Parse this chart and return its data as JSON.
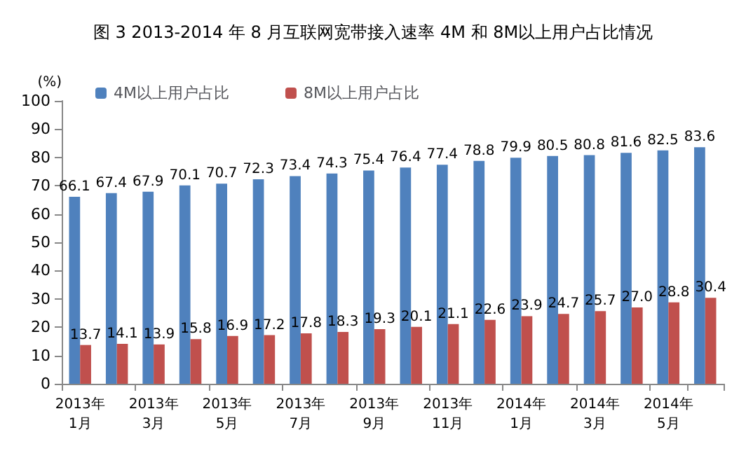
{
  "chart_data": {
    "type": "bar",
    "title": "图 3 2013-2014 年 8 月互联网宽带接入速率 4M 和 8M以上用户占比情况",
    "ylabel": "(%)",
    "categories": [
      "2013年\n1月",
      null,
      "2013年\n3月",
      null,
      "2013年\n5月",
      null,
      "2013年\n7月",
      null,
      "2013年\n9月",
      null,
      "2013年\n11月",
      null,
      "2014年\n1月",
      null,
      "2014年\n3月",
      null,
      "2014年\n5月",
      null
    ],
    "series": [
      {
        "name": "4M以上用户占比",
        "color": "#4f81bd",
        "values": [
          66.1,
          67.4,
          67.9,
          70.1,
          70.7,
          72.3,
          73.4,
          74.3,
          75.4,
          76.4,
          77.4,
          78.8,
          79.9,
          80.5,
          80.8,
          81.6,
          82.5,
          83.6
        ]
      },
      {
        "name": "8M以上用户占比",
        "color": "#c0504d",
        "values": [
          13.7,
          14.1,
          13.9,
          15.8,
          16.9,
          17.2,
          17.8,
          18.3,
          19.3,
          20.1,
          21.1,
          22.6,
          23.9,
          24.7,
          25.7,
          27.0,
          28.8,
          30.4
        ],
        "value_labels": [
          "13.7",
          "14.1",
          "13.9",
          "15.8",
          "16.9",
          "17.2",
          "17.8",
          "18.3",
          "19.3",
          "20.1",
          "21.1",
          "22.6",
          "23.9",
          "24.7",
          "25.7",
          "27.0",
          "28.8",
          "30.4"
        ]
      }
    ],
    "ylim": [
      0,
      100
    ],
    "yticks": [
      0,
      10,
      20,
      30,
      40,
      50,
      60,
      70,
      80,
      90,
      100
    ],
    "grid": false,
    "legend": "top left",
    "data_labels": true
  }
}
